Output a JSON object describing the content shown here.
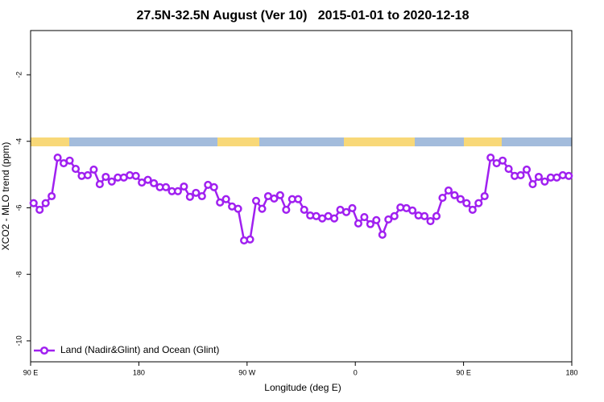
{
  "chart_data": {
    "type": "line",
    "title": "27.5N-32.5N August (Ver 10)   2015-01-01 to 2020-12-18",
    "xlabel": "Longitude (deg E)",
    "ylabel": "XCO2 - MLO trend (ppm)",
    "x": [
      92.5,
      97.5,
      102.5,
      107.5,
      112.5,
      117.5,
      122.5,
      127.5,
      132.5,
      137.5,
      142.5,
      147.5,
      152.5,
      157.5,
      162.5,
      167.5,
      172.5,
      177.5,
      182.5,
      187.5,
      192.5,
      197.5,
      202.5,
      207.5,
      212.5,
      217.5,
      222.5,
      227.5,
      232.5,
      237.5,
      242.5,
      247.5,
      252.5,
      257.5,
      262.5,
      267.5,
      272.5,
      277.5,
      282.5,
      287.5,
      292.5,
      297.5,
      302.5,
      307.5,
      312.5,
      317.5,
      322.5,
      327.5,
      332.5,
      337.5,
      342.5,
      347.5,
      352.5,
      357.5,
      362.5,
      367.5,
      372.5,
      377.5,
      382.5,
      387.5,
      392.5,
      397.5,
      402.5,
      407.5,
      412.5,
      417.5,
      422.5,
      427.5,
      432.5,
      437.5,
      442.5,
      447.5,
      452.5,
      457.5,
      462.5,
      467.5,
      472.5,
      477.5,
      482.5,
      487.5,
      492.5,
      497.5,
      502.5,
      507.5,
      512.5,
      517.5,
      522.5,
      527.5,
      532.5,
      537.5
    ],
    "series": [
      {
        "name": "Land (Nadir&Glint) and Ocean (Glint)",
        "color": "#a020f0",
        "values": [
          -5.86,
          -6.06,
          -5.86,
          -5.65,
          -4.49,
          -4.66,
          -4.58,
          -4.83,
          -5.04,
          -5.02,
          -4.85,
          -5.29,
          -5.07,
          -5.21,
          -5.09,
          -5.09,
          -5.02,
          -5.04,
          -5.24,
          -5.16,
          -5.26,
          -5.38,
          -5.38,
          -5.5,
          -5.5,
          -5.36,
          -5.67,
          -5.55,
          -5.65,
          -5.31,
          -5.38,
          -5.84,
          -5.74,
          -5.96,
          -6.03,
          -6.98,
          -6.95,
          -5.79,
          -6.03,
          -5.65,
          -5.72,
          -5.62,
          -6.06,
          -5.74,
          -5.74,
          -6.06,
          -6.23,
          -6.25,
          -6.32,
          -6.25,
          -6.32,
          -6.06,
          -6.13,
          -6.01,
          -6.47,
          -6.28,
          -6.49,
          -6.37,
          -6.81,
          -6.35,
          -6.25,
          -5.99,
          -6.01,
          -6.08,
          -6.23,
          -6.25,
          -6.4,
          -6.25,
          -5.7,
          -5.48,
          -5.62,
          -5.74,
          -5.86,
          -6.06,
          -5.86,
          -5.65,
          -4.49,
          -4.66,
          -4.58,
          -4.83,
          -5.04,
          -5.02,
          -4.85,
          -5.29,
          -5.07,
          -5.21,
          -5.09,
          -5.09,
          -5.02,
          -5.04
        ]
      }
    ],
    "xlim": [
      90,
      540
    ],
    "xticks": [
      {
        "value": 90,
        "label": "90 E"
      },
      180,
      {
        "value": 270,
        "label": "90 W"
      },
      {
        "value": 360,
        "label": "0"
      },
      {
        "value": 450,
        "label": "90 E"
      },
      {
        "value": 540,
        "label": "180"
      }
    ],
    "ylim": [
      -10.63,
      -0.67
    ],
    "yticks": [
      -10,
      -8,
      -6,
      -4,
      -2
    ],
    "legend": "bottomleft"
  }
}
